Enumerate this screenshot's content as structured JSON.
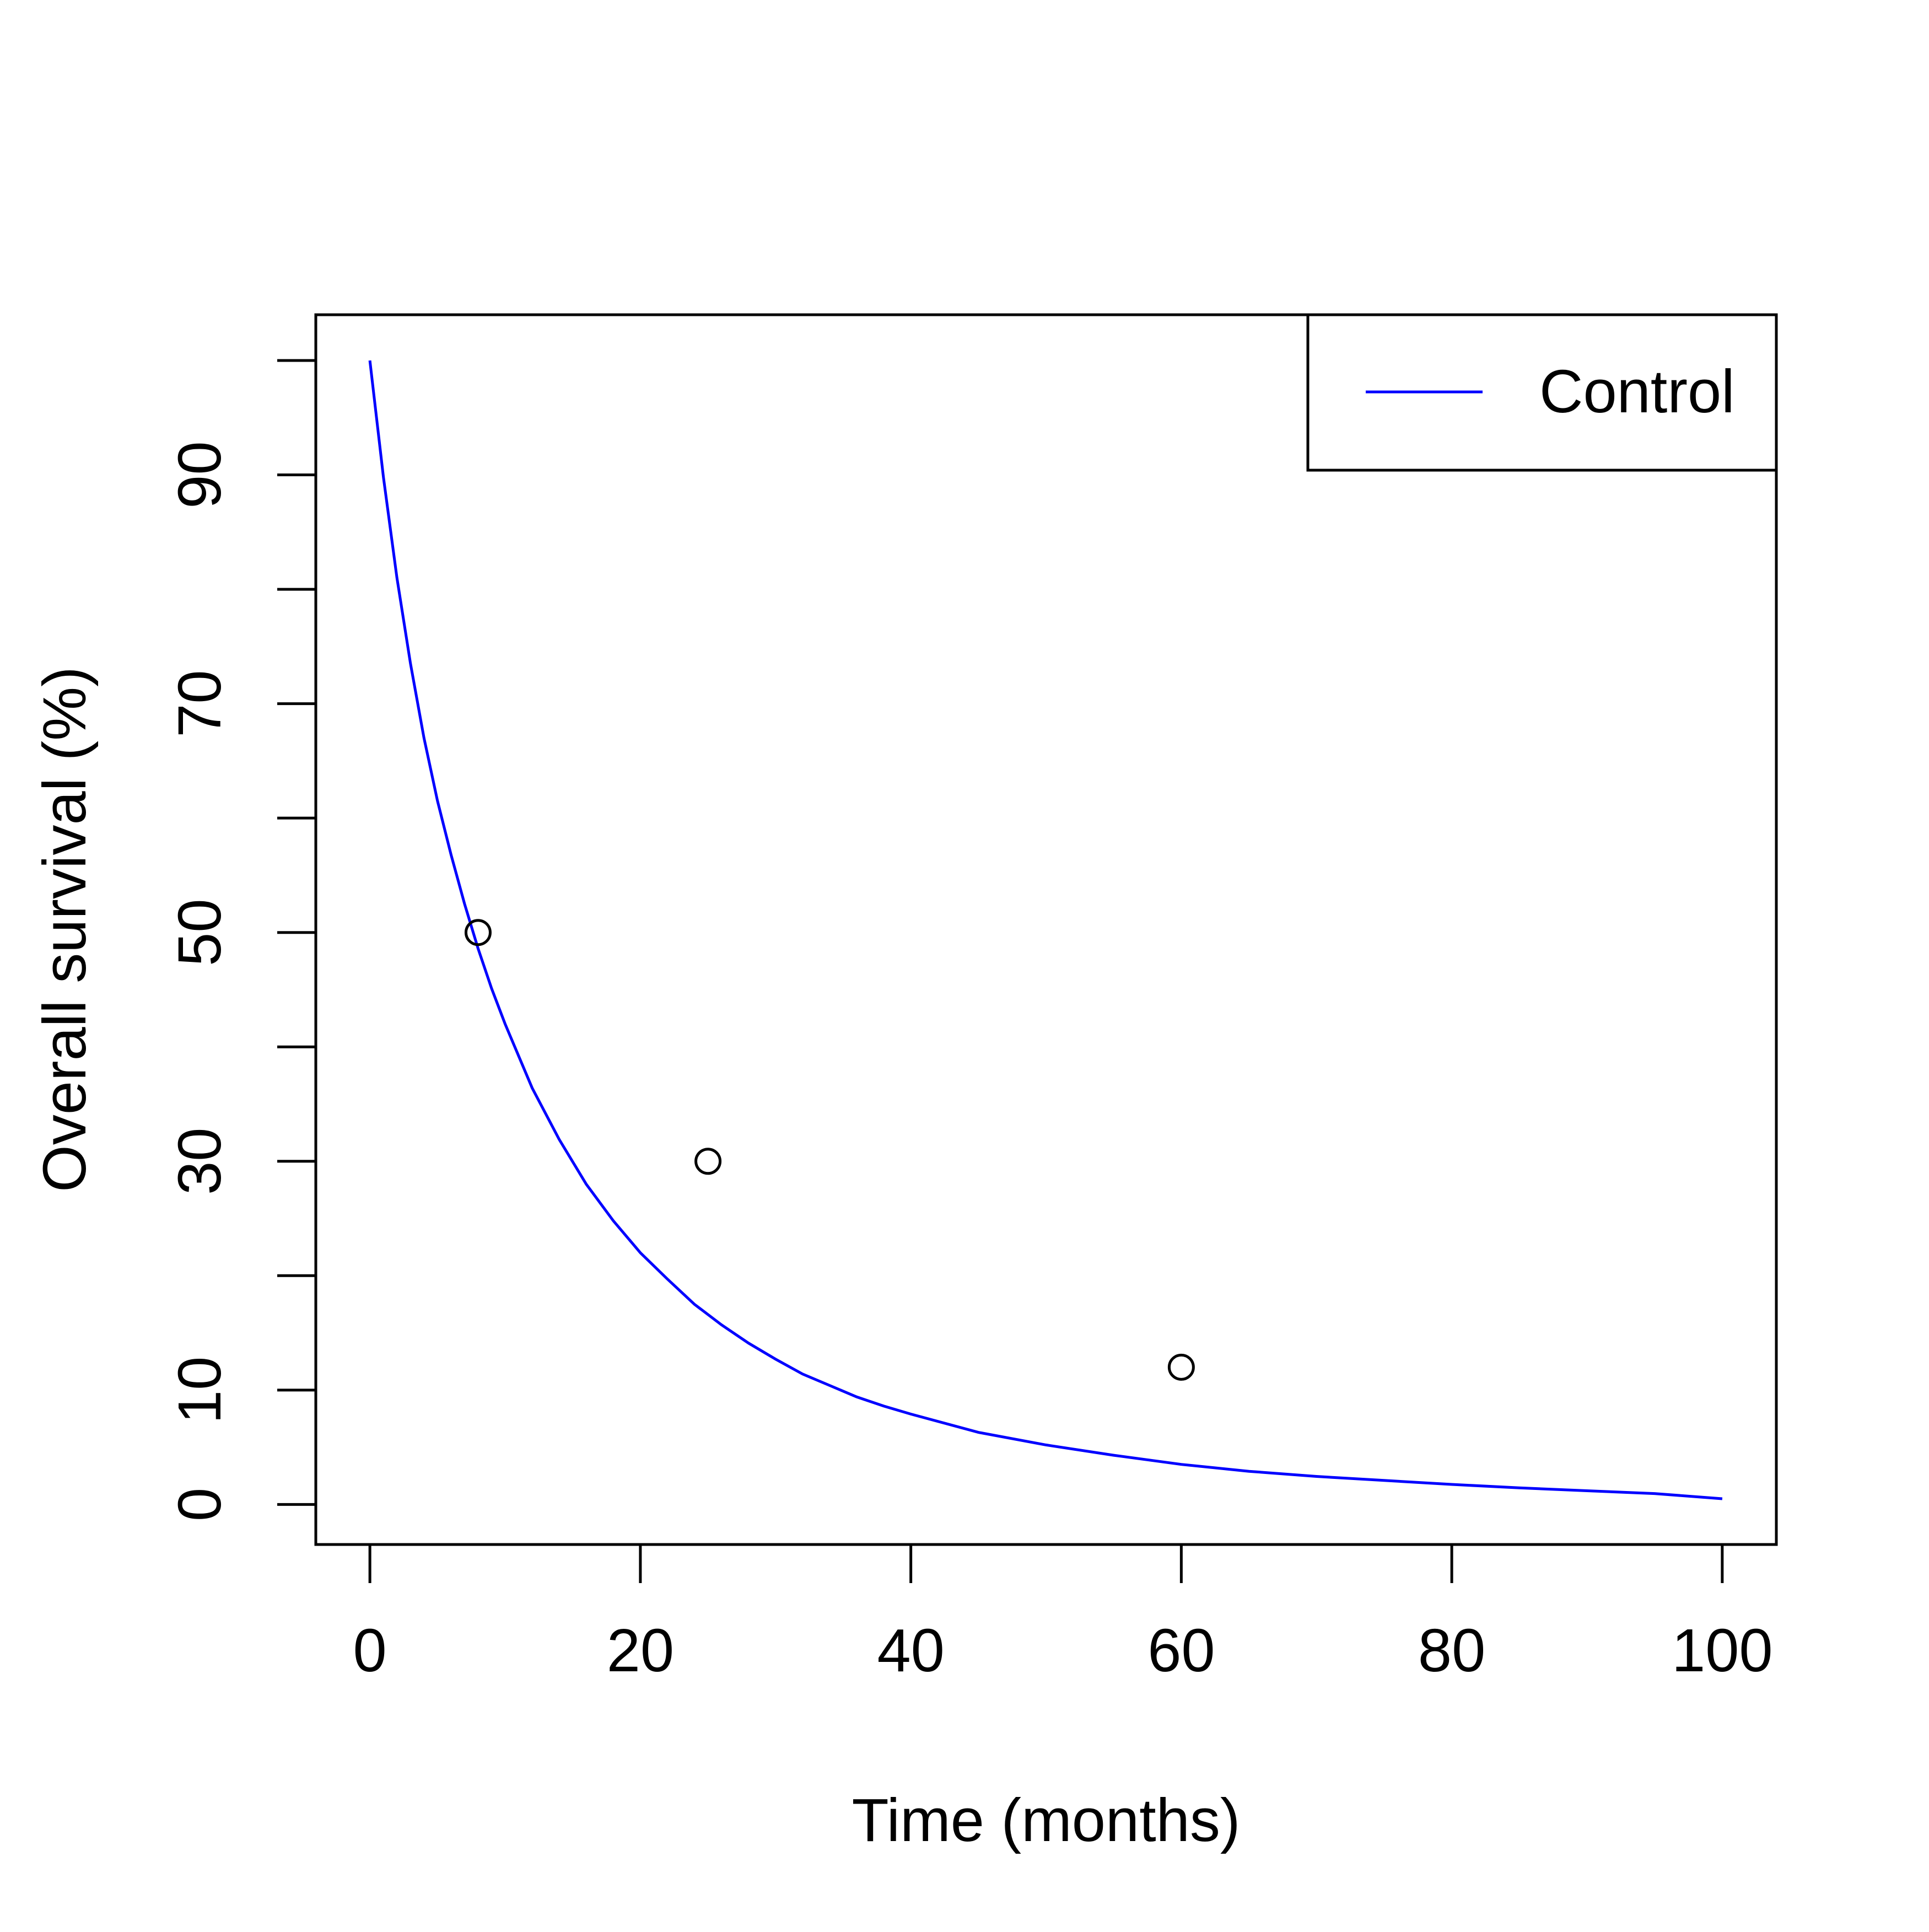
{
  "chart_data": {
    "type": "line",
    "title": "",
    "xlabel": "Time (months)",
    "ylabel": "Overall survival (%)",
    "xlim": [
      -4,
      104
    ],
    "ylim": [
      -3.5,
      104
    ],
    "x_ticks": [
      0,
      20,
      40,
      60,
      80,
      100
    ],
    "x_tick_labels": [
      "0",
      "20",
      "40",
      "60",
      "80",
      "100"
    ],
    "y_ticks": [
      0,
      10,
      20,
      30,
      40,
      50,
      60,
      70,
      80,
      90,
      100
    ],
    "y_tick_labels": [
      "0",
      "10",
      "",
      "30",
      "",
      "50",
      "",
      "70",
      "",
      "90",
      ""
    ],
    "grid": false,
    "legend": {
      "position": "top-right",
      "entries": [
        {
          "label": "Control",
          "color": "#0000ff"
        }
      ]
    },
    "series": [
      {
        "name": "Control",
        "style": "line",
        "color": "#0000ff",
        "x": [
          0,
          1,
          2,
          3,
          4,
          5,
          6,
          7,
          8,
          9,
          10,
          12,
          14,
          16,
          18,
          20,
          22,
          24,
          26,
          28,
          30,
          32,
          34,
          36,
          38,
          40,
          45,
          50,
          55,
          60,
          65,
          70,
          75,
          80,
          85,
          90,
          95,
          100
        ],
        "y": [
          100,
          89.8,
          81.0,
          73.5,
          67.0,
          61.5,
          56.8,
          52.5,
          48.6,
          45.1,
          42.0,
          36.4,
          31.9,
          28.0,
          24.8,
          22.0,
          19.7,
          17.5,
          15.7,
          14.1,
          12.7,
          11.4,
          10.4,
          9.4,
          8.6,
          7.9,
          6.3,
          5.2,
          4.3,
          3.5,
          2.9,
          2.45,
          2.1,
          1.75,
          1.45,
          1.2,
          0.95,
          0.5
        ]
      },
      {
        "name": "",
        "style": "points",
        "marker": "open-circle",
        "color": "#000000",
        "x": [
          8,
          25,
          60
        ],
        "y": [
          50,
          30,
          12
        ]
      }
    ]
  }
}
